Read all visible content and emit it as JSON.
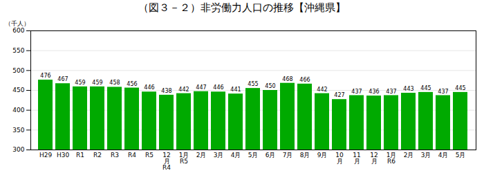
{
  "chart_data": {
    "type": "bar",
    "title": "（図３－２）非労働力人口の推移【沖縄県】",
    "ylabel": "（千人）",
    "categories": [
      "H29",
      "H30",
      "R1",
      "R2",
      "R3",
      "R4",
      "R5",
      "12\n月\nR4",
      "1月\nR5",
      "2月",
      "3月",
      "4月",
      "5月",
      "6月",
      "7月",
      "8月",
      "9月",
      "10\n月",
      "11\n月",
      "12\n月",
      "1月\nR6",
      "2月",
      "3月",
      "4月",
      "5月"
    ],
    "values": [
      476,
      467,
      459,
      459,
      458,
      456,
      446,
      438,
      442,
      447,
      446,
      441,
      455,
      450,
      468,
      466,
      442,
      427,
      437,
      436,
      437,
      443,
      445,
      437,
      445
    ],
    "color": "#00aa00",
    "ylim": [
      300,
      600
    ],
    "yticks": [
      300,
      350,
      400,
      450,
      500,
      550,
      600
    ],
    "grid": true,
    "data_labels": true
  }
}
